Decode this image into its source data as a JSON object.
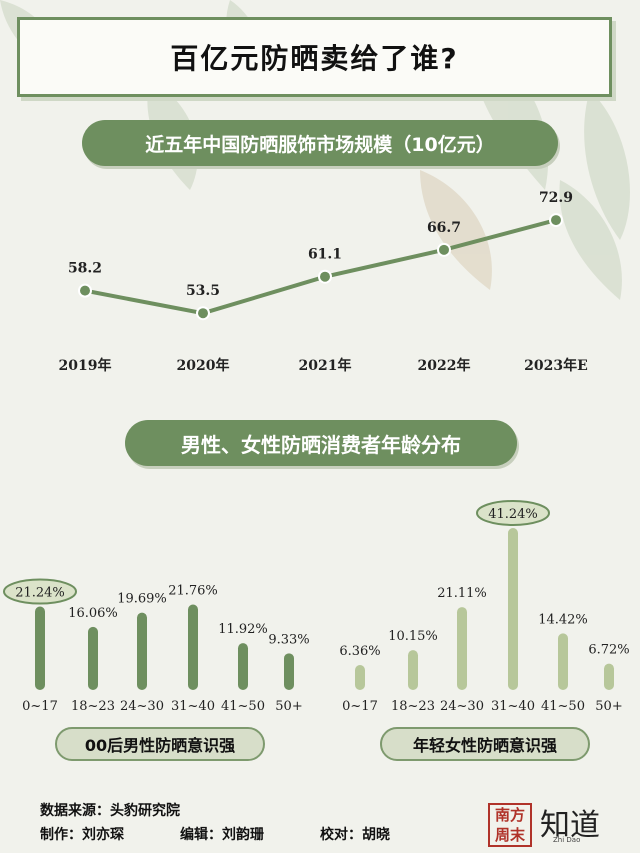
{
  "title": "百亿元防晒卖给了谁?",
  "market": {
    "heading": "近五年中国防晒服饰市场规模（10亿元）",
    "chart_data": {
      "type": "line",
      "x": [
        "2019年",
        "2020年",
        "2021年",
        "2022年",
        "2023年E"
      ],
      "values": [
        58.2,
        53.5,
        61.1,
        66.7,
        72.9
      ],
      "labels": [
        "58.2",
        "53.5",
        "61.1",
        "66.7",
        "72.9"
      ],
      "color": "#6e8f5f"
    }
  },
  "age": {
    "heading": "男性、女性防晒消费者年龄分布",
    "men": {
      "caption": "00后男性防晒意识强",
      "chart_data": {
        "type": "bar",
        "categories": [
          "0~17",
          "18~23",
          "24~30",
          "31~40",
          "41~50",
          "50+"
        ],
        "values": [
          21.24,
          16.06,
          19.69,
          21.76,
          11.92,
          9.33
        ],
        "labels": [
          "21.24%",
          "16.06%",
          "19.69%",
          "21.76%",
          "11.92%",
          "9.33%"
        ],
        "highlight_index": 0,
        "color": "#6e8f5f"
      }
    },
    "women": {
      "caption": "年轻女性防晒意识强",
      "chart_data": {
        "type": "bar",
        "categories": [
          "0~17",
          "18~23",
          "24~30",
          "31~40",
          "41~50",
          "50+"
        ],
        "values": [
          6.36,
          10.15,
          21.11,
          41.24,
          14.42,
          6.72
        ],
        "labels": [
          "6.36%",
          "10.15%",
          "21.11%",
          "41.24%",
          "14.42%",
          "6.72%"
        ],
        "highlight_index": 3,
        "color": "#b7c79a"
      }
    }
  },
  "footer": {
    "source": "数据来源：头豹研究院",
    "producer": "制作：刘亦琛",
    "editor": "编辑：刘韵珊",
    "proofreader": "校对：胡晓"
  },
  "logos": {
    "nanfang": "南方周末",
    "zhidao": "知道",
    "zhidao_sub": "Zhi Dao"
  }
}
